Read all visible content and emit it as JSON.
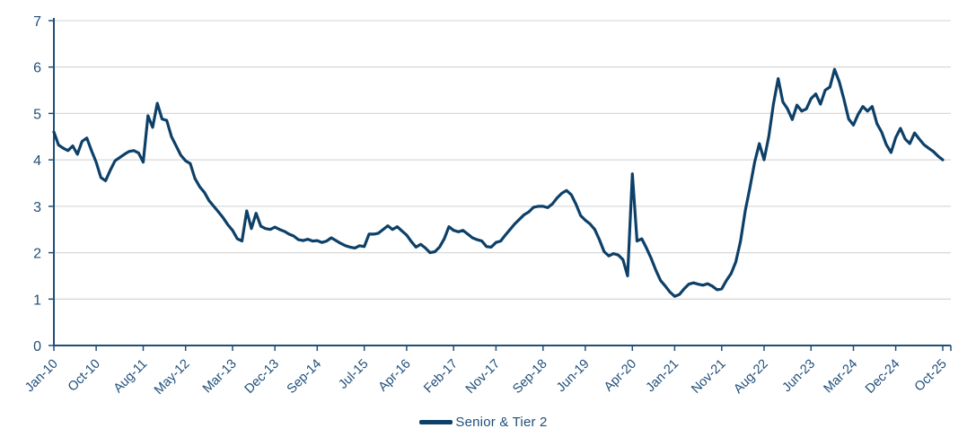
{
  "colors": {
    "line": "#0D4068",
    "label": "#1F4E79",
    "axis": "#1F4E79",
    "grid": "#D9D9D9",
    "background": "#FFFFFF"
  },
  "legend": {
    "label": "Senior & Tier 2"
  },
  "chart_data": {
    "type": "line",
    "title": "",
    "x_frequency": "monthly",
    "x_range": [
      "Jan-2010",
      "Oct-2025"
    ],
    "total_months": 189,
    "ylim": [
      0,
      7
    ],
    "y_ticks": [
      0,
      1,
      2,
      3,
      4,
      5,
      6,
      7
    ],
    "grid": "horizontal-gridlines",
    "legend_position": "bottom-center",
    "x_ticks": [
      {
        "label": "Jan-10",
        "month_offset": 0
      },
      {
        "label": "Oct-10",
        "month_offset": 9
      },
      {
        "label": "Aug-11",
        "month_offset": 19
      },
      {
        "label": "May-12",
        "month_offset": 28
      },
      {
        "label": "Mar-13",
        "month_offset": 38
      },
      {
        "label": "Dec-13",
        "month_offset": 47
      },
      {
        "label": "Sep-14",
        "month_offset": 56
      },
      {
        "label": "Jul-15",
        "month_offset": 66
      },
      {
        "label": "Apr-16",
        "month_offset": 75
      },
      {
        "label": "Feb-17",
        "month_offset": 85
      },
      {
        "label": "Nov-17",
        "month_offset": 94
      },
      {
        "label": "Sep-18",
        "month_offset": 104
      },
      {
        "label": "Jun-19",
        "month_offset": 113
      },
      {
        "label": "Apr-20",
        "month_offset": 123
      },
      {
        "label": "Jan-21",
        "month_offset": 132
      },
      {
        "label": "Nov-21",
        "month_offset": 142
      },
      {
        "label": "Aug-22",
        "month_offset": 151
      },
      {
        "label": "Jun-23",
        "month_offset": 161
      },
      {
        "label": "Mar-24",
        "month_offset": 170
      },
      {
        "label": "Dec-24",
        "month_offset": 179
      },
      {
        "label": "Oct-25",
        "month_offset": 189
      }
    ],
    "series": [
      {
        "name": "Senior & Tier 2",
        "color": "#0D4068",
        "start_month": "Jan-2010",
        "values": [
          4.6,
          4.32,
          4.25,
          4.2,
          4.3,
          4.12,
          4.4,
          4.47,
          4.2,
          3.95,
          3.62,
          3.55,
          3.78,
          3.98,
          4.05,
          4.12,
          4.18,
          4.2,
          4.15,
          3.95,
          4.95,
          4.7,
          5.22,
          4.88,
          4.85,
          4.5,
          4.3,
          4.1,
          3.98,
          3.92,
          3.6,
          3.42,
          3.3,
          3.12,
          3.0,
          2.88,
          2.75,
          2.6,
          2.48,
          2.3,
          2.25,
          2.9,
          2.52,
          2.85,
          2.57,
          2.52,
          2.5,
          2.55,
          2.5,
          2.46,
          2.4,
          2.36,
          2.28,
          2.26,
          2.29,
          2.25,
          2.26,
          2.22,
          2.25,
          2.32,
          2.26,
          2.2,
          2.15,
          2.12,
          2.1,
          2.15,
          2.13,
          2.4,
          2.4,
          2.42,
          2.5,
          2.58,
          2.5,
          2.56,
          2.47,
          2.38,
          2.24,
          2.12,
          2.18,
          2.1,
          2.0,
          2.02,
          2.12,
          2.3,
          2.56,
          2.48,
          2.45,
          2.48,
          2.4,
          2.32,
          2.28,
          2.25,
          2.13,
          2.12,
          2.22,
          2.25,
          2.38,
          2.5,
          2.62,
          2.72,
          2.82,
          2.88,
          2.98,
          3.0,
          3.0,
          2.97,
          3.05,
          3.18,
          3.28,
          3.34,
          3.25,
          3.05,
          2.8,
          2.7,
          2.62,
          2.5,
          2.28,
          2.02,
          1.93,
          1.98,
          1.95,
          1.85,
          1.5,
          3.7,
          2.25,
          2.3,
          2.1,
          1.88,
          1.62,
          1.4,
          1.28,
          1.15,
          1.06,
          1.1,
          1.22,
          1.32,
          1.35,
          1.32,
          1.3,
          1.33,
          1.28,
          1.2,
          1.22,
          1.4,
          1.55,
          1.8,
          2.25,
          2.9,
          3.4,
          3.95,
          4.35,
          4.0,
          4.5,
          5.2,
          5.75,
          5.25,
          5.1,
          4.87,
          5.18,
          5.05,
          5.1,
          5.32,
          5.42,
          5.2,
          5.5,
          5.57,
          5.95,
          5.68,
          5.3,
          4.88,
          4.75,
          4.98,
          5.15,
          5.05,
          5.15,
          4.78,
          4.6,
          4.33,
          4.16,
          4.48,
          4.68,
          4.45,
          4.35,
          4.58,
          4.45,
          4.33,
          4.25,
          4.18,
          4.08,
          4.0
        ]
      }
    ]
  }
}
